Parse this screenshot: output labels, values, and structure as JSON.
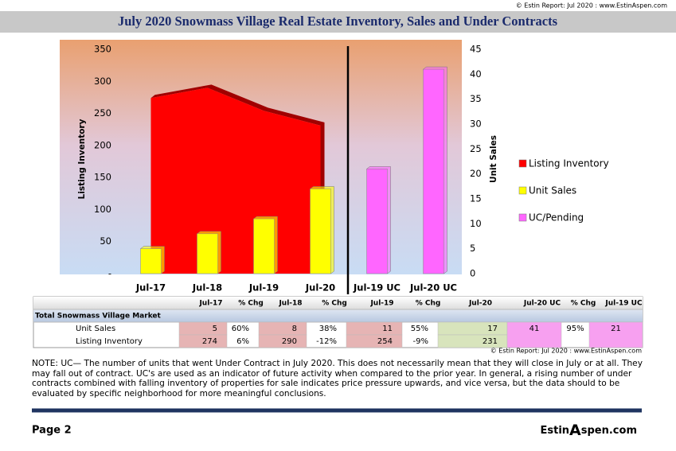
{
  "header": {
    "copyright": "© Estin Report: Jul 2020 : www.EstinAspen.com",
    "title": "July 2020 Snowmass Village Real Estate Inventory, Sales and Under Contracts"
  },
  "chart_data": {
    "type": "combo",
    "categories": [
      "Jul-17",
      "Jul-18",
      "Jul-19",
      "Jul-20",
      "Jul-19 UC",
      "Jul-20 UC"
    ],
    "series": [
      {
        "name": "Listing Inventory",
        "type": "area",
        "color": "#ff0000",
        "values": [
          274,
          290,
          254,
          231,
          null,
          null
        ]
      },
      {
        "name": "Unit Sales",
        "type": "bar",
        "axis": "y2",
        "color": "#ffff00",
        "values": [
          5,
          8,
          11,
          17,
          null,
          null
        ]
      },
      {
        "name": "UC/Pending",
        "type": "bar",
        "axis": "y2",
        "color": "#ff66ff",
        "values": [
          null,
          null,
          null,
          null,
          21,
          41
        ]
      }
    ],
    "ylabel": "Listing Inventory",
    "y2label": "Unit Sales",
    "ylim": [
      0,
      350
    ],
    "yticks": [
      {
        "value": 0,
        "label": "-"
      },
      50,
      100,
      150,
      200,
      250,
      300,
      350
    ],
    "y2lim": [
      0,
      45
    ],
    "y2ticks": [
      0,
      5,
      10,
      15,
      20,
      25,
      30,
      35,
      40,
      45
    ],
    "legend": "right"
  },
  "table": {
    "header": [
      "Jul-17",
      "% Chg",
      "Jul-18",
      "% Chg",
      "Jul-19",
      "% Chg",
      "Jul-20",
      "Jul-20 UC",
      "% Chg",
      "Jul-19 UC"
    ],
    "section": "Total Snowmass Village Market",
    "rows": [
      [
        "Unit Sales",
        "5",
        "60%",
        "8",
        "38%",
        "11",
        "55%",
        "17",
        "41",
        "95%",
        "21"
      ],
      [
        "Listing Inventory",
        "274",
        "6%",
        "290",
        "-12%",
        "254",
        "-9%",
        "231",
        null,
        null,
        null
      ]
    ]
  },
  "source": "© Estin Report: Jul 2020 : www.EstinAspen.com",
  "note": "NOTE: UC— The number of units that went Under Contract in July 2020. This does not necessarily mean that they will close in July or at all. They may fall out of contract.  UC's are used as an indicator of future activity when compared to the prior year. In general, a rising number of under contracts combined with falling inventory of properties for sale indicates price pressure upwards, and vice versa, but the data should to be evaluated by specific neighborhood for more meaningful conclusions.",
  "footer": {
    "page": "Page 2",
    "brand": [
      "Estin",
      "A",
      "spen.com"
    ]
  }
}
